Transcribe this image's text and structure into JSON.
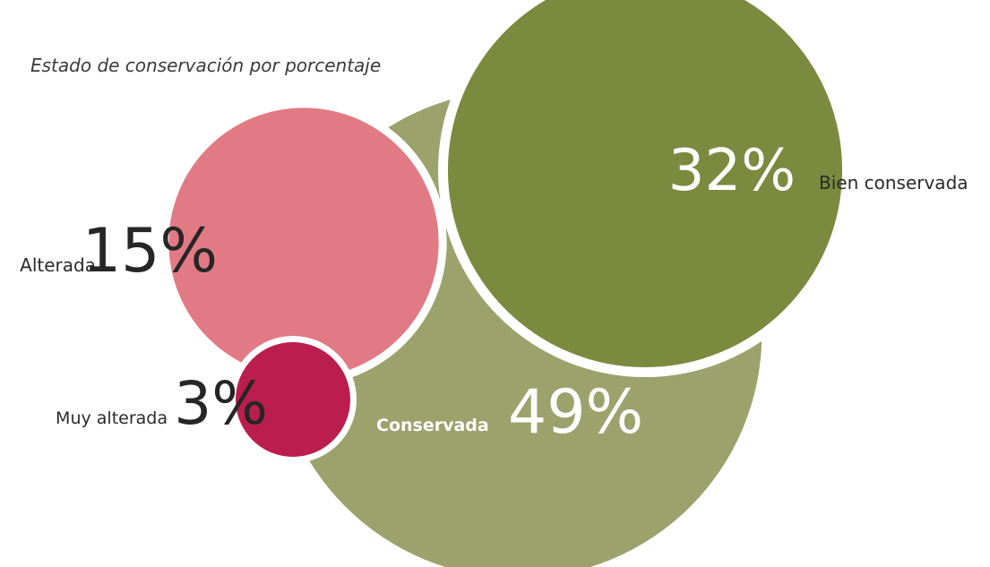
{
  "chart_data": {
    "type": "bubble",
    "title": "Estado de conservación por porcentaje",
    "unit": "%",
    "series": [
      {
        "name": "Conservada",
        "value": 49,
        "label": "49%",
        "color": "#9ba26c"
      },
      {
        "name": "Bien conservada",
        "value": 32,
        "label": "32%",
        "color": "#7b8a3f"
      },
      {
        "name": "Alterada",
        "value": 15,
        "label": "15%",
        "color": "#e17a84"
      },
      {
        "name": "Muy alterada",
        "value": 3,
        "label": "3%",
        "color": "#bb1d4e"
      }
    ],
    "background": "#ffffff",
    "outline_color": "#ffffff"
  }
}
